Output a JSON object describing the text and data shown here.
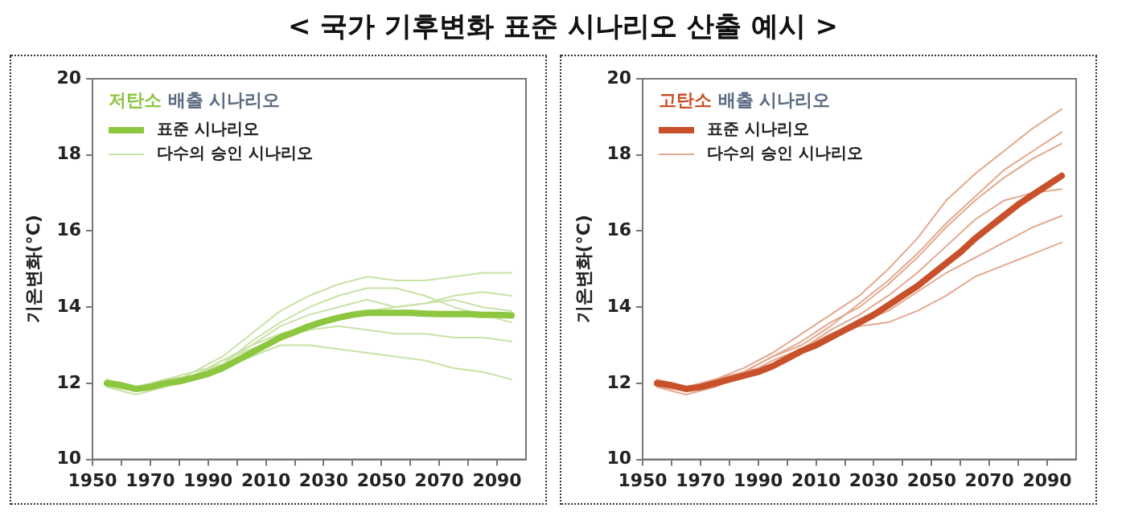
{
  "chart_data": [
    {
      "type": "line",
      "title": "< 국가 기후변화 표준 시나리오 산출 예시 >",
      "legend_title": "저탄소 배출 시나리오",
      "ylabel": "기온변화(°C)",
      "legend": "top left",
      "grid": false,
      "marker": "none",
      "line_style": "solid",
      "xlim": [
        1950,
        2100
      ],
      "ylim": [
        10,
        20
      ],
      "yticks": [
        10,
        12,
        14,
        16,
        18,
        20
      ],
      "xticks": [
        1950,
        {
          "value": 1960,
          "label": null
        },
        1970,
        {
          "value": 1980,
          "label": null
        },
        1990,
        {
          "value": 2000,
          "label": null
        },
        2010,
        {
          "value": 2020,
          "label": null
        },
        2030,
        {
          "value": 2040,
          "label": null
        },
        2050,
        {
          "value": 2060,
          "label": null
        },
        2070,
        {
          "value": 2080,
          "label": null
        },
        2090
      ],
      "series": [
        {
          "name": "표준 시나리오",
          "color": "#8dc63f",
          "x": [
            1955,
            1960,
            1965,
            1970,
            1975,
            1980,
            1985,
            1990,
            1995,
            2000,
            2005,
            2010,
            2015,
            2020,
            2025,
            2030,
            2035,
            2040,
            2045,
            2050,
            2055,
            2060,
            2065,
            2070,
            2075,
            2080,
            2085,
            2090,
            2095
          ],
          "values": [
            12.0,
            11.95,
            11.85,
            11.9,
            12.0,
            12.05,
            12.15,
            12.25,
            12.4,
            12.6,
            12.8,
            13.0,
            13.2,
            13.35,
            13.5,
            13.62,
            13.72,
            13.8,
            13.85,
            13.85,
            13.85,
            13.85,
            13.83,
            13.82,
            13.82,
            13.82,
            13.8,
            13.8,
            13.78
          ]
        },
        {
          "name": "다수의 승인 시나리오",
          "color": "#c9e2a6",
          "x": [
            1955,
            1965,
            1975,
            1985,
            1995,
            2005,
            2015,
            2025,
            2035,
            2045,
            2055,
            2065,
            2075,
            2085,
            2095
          ],
          "values": [
            12.1,
            11.9,
            12.1,
            12.3,
            12.7,
            13.3,
            13.9,
            14.3,
            14.6,
            14.8,
            14.7,
            14.7,
            14.8,
            14.9,
            14.9
          ]
        },
        {
          "color": "#c9e2a6",
          "x": [
            1955,
            1965,
            1975,
            1985,
            1995,
            2005,
            2015,
            2025,
            2035,
            2045,
            2055,
            2065,
            2075,
            2085,
            2095
          ],
          "values": [
            11.9,
            11.8,
            11.9,
            12.1,
            12.4,
            12.7,
            13.0,
            13.0,
            12.9,
            12.8,
            12.7,
            12.6,
            12.4,
            12.3,
            12.1
          ]
        },
        {
          "color": "#c9e2a6",
          "x": [
            1955,
            1965,
            1975,
            1985,
            1995,
            2005,
            2015,
            2025,
            2035,
            2045,
            2055,
            2065,
            2075,
            2085,
            2095
          ],
          "values": [
            12.0,
            11.8,
            12.0,
            12.2,
            12.5,
            13.0,
            13.5,
            13.8,
            14.0,
            14.2,
            14.0,
            14.1,
            14.3,
            14.4,
            14.3
          ]
        },
        {
          "color": "#c9e2a6",
          "x": [
            1955,
            1965,
            1975,
            1985,
            1995,
            2005,
            2015,
            2025,
            2035,
            2045,
            2055,
            2065,
            2075,
            2085,
            2095
          ],
          "values": [
            12.1,
            11.9,
            12.0,
            12.2,
            12.6,
            12.9,
            13.2,
            13.4,
            13.5,
            13.4,
            13.3,
            13.3,
            13.2,
            13.2,
            13.1
          ]
        },
        {
          "color": "#c9e2a6",
          "x": [
            1955,
            1965,
            1975,
            1985,
            1995,
            2005,
            2015,
            2025,
            2035,
            2045,
            2055,
            2065,
            2075,
            2085,
            2095
          ],
          "values": [
            11.9,
            11.7,
            11.9,
            12.3,
            12.5,
            13.1,
            13.6,
            14.0,
            14.3,
            14.5,
            14.5,
            14.3,
            14.0,
            13.8,
            13.6
          ]
        },
        {
          "color": "#c9e2a6",
          "x": [
            1955,
            1965,
            1975,
            1985,
            1995,
            2005,
            2015,
            2025,
            2035,
            2045,
            2055,
            2065,
            2075,
            2085,
            2095
          ],
          "values": [
            12.0,
            11.9,
            12.1,
            12.2,
            12.6,
            13.0,
            13.3,
            13.5,
            13.7,
            13.9,
            14.0,
            14.1,
            14.2,
            14.0,
            13.9
          ]
        }
      ]
    },
    {
      "type": "line",
      "legend_title": "고탄소 배출 시나리오",
      "ylabel": "기온변화(°C)",
      "legend": "top left",
      "grid": false,
      "marker": "none",
      "line_style": "solid",
      "xlim": [
        1950,
        2100
      ],
      "ylim": [
        10,
        20
      ],
      "yticks": [
        10,
        12,
        14,
        16,
        18,
        20
      ],
      "xticks": [
        1950,
        {
          "value": 1960,
          "label": null
        },
        1970,
        {
          "value": 1980,
          "label": null
        },
        1990,
        {
          "value": 2000,
          "label": null
        },
        2010,
        {
          "value": 2020,
          "label": null
        },
        2030,
        {
          "value": 2040,
          "label": null
        },
        2050,
        {
          "value": 2060,
          "label": null
        },
        2070,
        {
          "value": 2080,
          "label": null
        },
        2090
      ],
      "series": [
        {
          "name": "표준 시나리오",
          "color": "#c8502a",
          "x": [
            1955,
            1960,
            1965,
            1970,
            1975,
            1980,
            1985,
            1990,
            1995,
            2000,
            2005,
            2010,
            2015,
            2020,
            2025,
            2030,
            2035,
            2040,
            2045,
            2050,
            2055,
            2060,
            2065,
            2070,
            2075,
            2080,
            2085,
            2090,
            2095
          ],
          "values": [
            12.0,
            11.95,
            11.85,
            11.9,
            12.0,
            12.1,
            12.2,
            12.3,
            12.45,
            12.65,
            12.85,
            13.0,
            13.2,
            13.4,
            13.6,
            13.8,
            14.05,
            14.3,
            14.55,
            14.85,
            15.15,
            15.45,
            15.8,
            16.1,
            16.4,
            16.7,
            16.95,
            17.2,
            17.45
          ]
        },
        {
          "name": "다수의 승인 시나리오",
          "color": "#e3a98f",
          "x": [
            1955,
            1965,
            1975,
            1985,
            1995,
            2005,
            2015,
            2025,
            2035,
            2045,
            2055,
            2065,
            2075,
            2085,
            2095
          ],
          "values": [
            12.1,
            11.9,
            12.1,
            12.4,
            12.8,
            13.3,
            13.8,
            14.3,
            15.0,
            15.8,
            16.8,
            17.5,
            18.1,
            18.7,
            19.2
          ]
        },
        {
          "color": "#e3a98f",
          "x": [
            1955,
            1965,
            1975,
            1985,
            1995,
            2005,
            2015,
            2025,
            2035,
            2045,
            2055,
            2065,
            2075,
            2085,
            2095
          ],
          "values": [
            11.9,
            11.8,
            11.9,
            12.2,
            12.5,
            12.8,
            13.2,
            13.5,
            13.6,
            13.9,
            14.3,
            14.8,
            15.1,
            15.4,
            15.7
          ]
        },
        {
          "color": "#e3a98f",
          "x": [
            1955,
            1965,
            1975,
            1985,
            1995,
            2005,
            2015,
            2025,
            2035,
            2045,
            2055,
            2065,
            2075,
            2085,
            2095
          ],
          "values": [
            12.0,
            11.8,
            12.0,
            12.3,
            12.7,
            13.1,
            13.6,
            14.0,
            14.6,
            15.3,
            16.1,
            16.8,
            17.4,
            17.9,
            18.3
          ]
        },
        {
          "color": "#e3a98f",
          "x": [
            1955,
            1965,
            1975,
            1985,
            1995,
            2005,
            2015,
            2025,
            2035,
            2045,
            2055,
            2065,
            2075,
            2085,
            2095
          ],
          "values": [
            12.1,
            11.9,
            12.0,
            12.2,
            12.6,
            12.9,
            13.4,
            13.8,
            14.3,
            14.9,
            15.6,
            16.3,
            16.8,
            17.0,
            17.1
          ]
        },
        {
          "color": "#e3a98f",
          "x": [
            1955,
            1965,
            1975,
            1985,
            1995,
            2005,
            2015,
            2025,
            2035,
            2045,
            2055,
            2065,
            2075,
            2085,
            2095
          ],
          "values": [
            11.9,
            11.7,
            11.9,
            12.3,
            12.5,
            12.9,
            13.3,
            13.6,
            13.9,
            14.4,
            14.9,
            15.3,
            15.7,
            16.1,
            16.4
          ]
        },
        {
          "color": "#e3a98f",
          "x": [
            1955,
            1965,
            1975,
            1985,
            1995,
            2005,
            2015,
            2025,
            2035,
            2045,
            2055,
            2065,
            2075,
            2085,
            2095
          ],
          "values": [
            12.0,
            11.9,
            12.1,
            12.3,
            12.7,
            13.0,
            13.5,
            14.1,
            14.7,
            15.4,
            16.2,
            16.9,
            17.6,
            18.1,
            18.6
          ]
        }
      ]
    }
  ]
}
